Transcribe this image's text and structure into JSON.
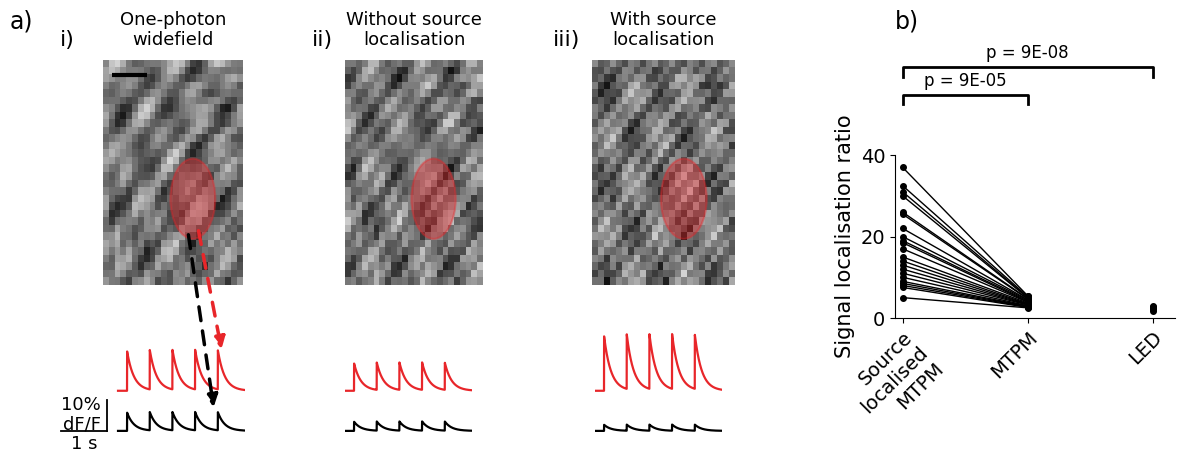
{
  "labels": {
    "a": "a)",
    "b": "b)"
  },
  "panel_a": {
    "spike_times_s": [
      0.2,
      0.7,
      1.2,
      1.7,
      2.2
    ],
    "duration_s": 2.8,
    "decay_s": 0.15,
    "scale_bar": {
      "dff_percent": 10,
      "dff_label": "10%",
      "unit_label": "dF/F",
      "time_s": 1,
      "time_label": "1 s"
    },
    "columns": [
      {
        "label": "i)",
        "title": "One-photon\nwidefield",
        "red_amplitude": 13,
        "black_amplitude": 6,
        "red_color": "#e8262a",
        "black_color": "#000000"
      },
      {
        "label": "ii)",
        "title": "Without source\nlocalisation",
        "red_amplitude": 9,
        "black_amplitude": 3,
        "red_color": "#e8262a",
        "black_color": "#000000"
      },
      {
        "label": "iii)",
        "title": "With source\nlocalisation",
        "red_amplitude": 18,
        "black_amplitude": 2,
        "red_color": "#e8262a",
        "black_color": "#000000"
      }
    ]
  },
  "chart_data": {
    "type": "paired_scatter",
    "ylabel": "Signal localisation ratio",
    "categories": [
      "Source localised MTPM",
      "MTPM",
      "LED"
    ],
    "values": [
      [
        37,
        32.5,
        31,
        30,
        26,
        25.5,
        22,
        20,
        19,
        18.5,
        17,
        15,
        14,
        13,
        12,
        11,
        10,
        9,
        8.5,
        8,
        7.5,
        5
      ],
      [
        5.5,
        5.3,
        5.1,
        5,
        4.8,
        4.7,
        4.5,
        4.4,
        4.2,
        4,
        3.9,
        3.7,
        3.5,
        3.4,
        3.3,
        3.2,
        3,
        2.9,
        2.8,
        2.7,
        2.6,
        2.5
      ],
      [
        3,
        2.7,
        2.5,
        2.2,
        1.8
      ]
    ],
    "color": "#000000",
    "marker": "o",
    "line_style": "solid",
    "ylim": [
      0,
      40
    ],
    "yticks": [
      0,
      20,
      40
    ],
    "annotations": [
      {
        "text": "p = 9E-05",
        "from": 0,
        "to": 1
      },
      {
        "text": "p = 9E-08",
        "from": 0,
        "to": 2
      }
    ]
  }
}
